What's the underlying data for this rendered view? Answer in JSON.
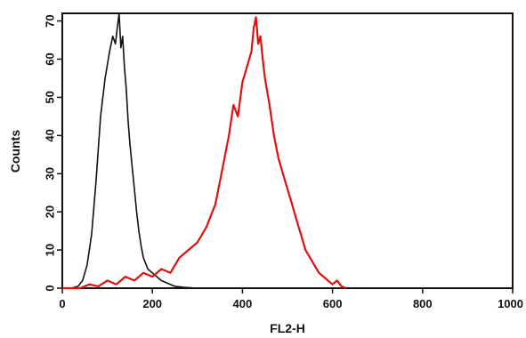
{
  "chart_data": {
    "type": "line",
    "title": "",
    "xlabel": "FL2-H",
    "ylabel": "Counts",
    "xlim": [
      0,
      1000
    ],
    "ylim": [
      0,
      72
    ],
    "grid": false,
    "x_ticks": [
      0,
      200,
      400,
      600,
      800,
      1000
    ],
    "y_ticks": [
      0,
      10,
      20,
      30,
      40,
      50,
      60,
      70
    ],
    "series": [
      {
        "color": "#111111",
        "x": [
          0,
          20,
          35,
          45,
          55,
          65,
          75,
          85,
          95,
          105,
          112,
          118,
          122,
          126,
          130,
          134,
          138,
          142,
          146,
          150,
          155,
          160,
          165,
          170,
          175,
          180,
          190,
          200,
          210,
          220,
          230,
          240,
          250,
          270,
          300
        ],
        "y": [
          0,
          0,
          0.5,
          2,
          6,
          14,
          28,
          45,
          55,
          62,
          66,
          64,
          68,
          72,
          63,
          66,
          58,
          52,
          44,
          38,
          32,
          26,
          20,
          15,
          11,
          8,
          5,
          4,
          3,
          2,
          1.5,
          1,
          0.5,
          0.2,
          0
        ]
      },
      {
        "color": "#e01010",
        "x": [
          0,
          40,
          60,
          80,
          100,
          120,
          140,
          160,
          180,
          200,
          220,
          240,
          260,
          280,
          300,
          320,
          340,
          350,
          360,
          370,
          380,
          390,
          400,
          410,
          420,
          425,
          430,
          435,
          440,
          445,
          450,
          460,
          470,
          480,
          490,
          500,
          510,
          520,
          530,
          540,
          550,
          560,
          570,
          580,
          590,
          600,
          610,
          620,
          630
        ],
        "y": [
          0,
          0,
          1,
          0.5,
          2,
          1,
          3,
          2,
          4,
          3,
          5,
          4,
          8,
          10,
          12,
          16,
          22,
          28,
          34,
          40,
          48,
          45,
          54,
          58,
          62,
          68,
          71,
          64,
          66,
          60,
          55,
          48,
          40,
          34,
          30,
          26,
          22,
          18,
          14,
          10,
          8,
          6,
          4,
          3,
          2,
          1,
          2,
          0.5,
          0
        ]
      }
    ]
  }
}
